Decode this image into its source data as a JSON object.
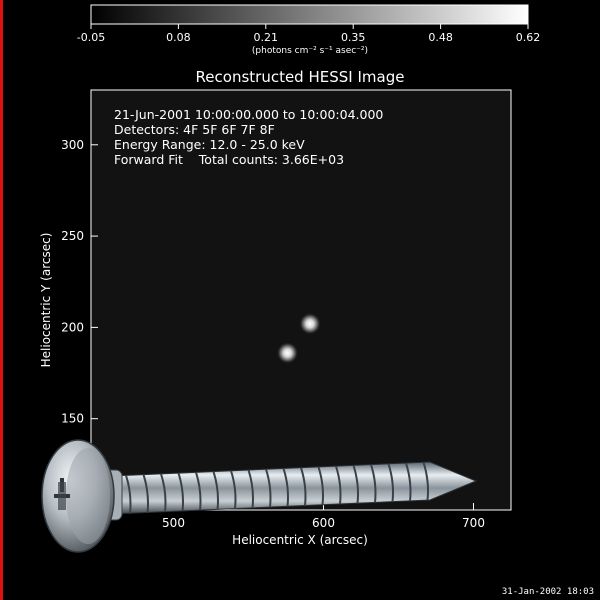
{
  "colorbar": {
    "ticks": [
      "-0.05",
      "0.08",
      "0.21",
      "0.35",
      "0.48",
      "0.62"
    ],
    "unit_label": "(photons cm⁻² s⁻¹ asec⁻²)"
  },
  "plot": {
    "title": "Reconstructed HESSI Image",
    "info_lines": [
      "21-Jun-2001 10:00:00.000 to 10:00:04.000",
      "Detectors: 4F 5F 6F 7F 8F",
      "Energy Range: 12.0 - 25.0 keV",
      "Forward Fit    Total counts: 3.66E+03"
    ],
    "xlabel": "Heliocentric X (arcsec)",
    "ylabel": "Heliocentric Y (arcsec)",
    "x_ticks": [
      "500",
      "600",
      "700"
    ],
    "y_ticks": [
      "150",
      "200",
      "250",
      "300"
    ],
    "sources": [
      {
        "x": 591,
        "y": 202,
        "brightness": "bright"
      },
      {
        "x": 576,
        "y": 186,
        "brightness": "bright"
      }
    ]
  },
  "footer": {
    "timestamp": "31-Jan-2002 18:03"
  },
  "overlay": {
    "icon": "screw-icon"
  }
}
